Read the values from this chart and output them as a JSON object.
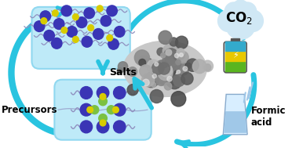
{
  "bg_color": "#ffffff",
  "box1_color": "#beeaf8",
  "box2_color": "#beeaf8",
  "arrow_color": "#29c4e0",
  "text_salts": "Salts",
  "text_precursors": "Precursors",
  "text_formic": "Formic\nacid",
  "purple_color": "#3a35b5",
  "yellow_color": "#d8cc00",
  "green_color": "#7bc142",
  "cloud_color": "#d0e8f5",
  "cloud_edge": "#b0d0e8",
  "batt_green": "#5ab520",
  "batt_yellow": "#e8c800",
  "batt_dark": "#222222",
  "water_color": "#a0c8e8",
  "glass_color": "#d8eeff"
}
